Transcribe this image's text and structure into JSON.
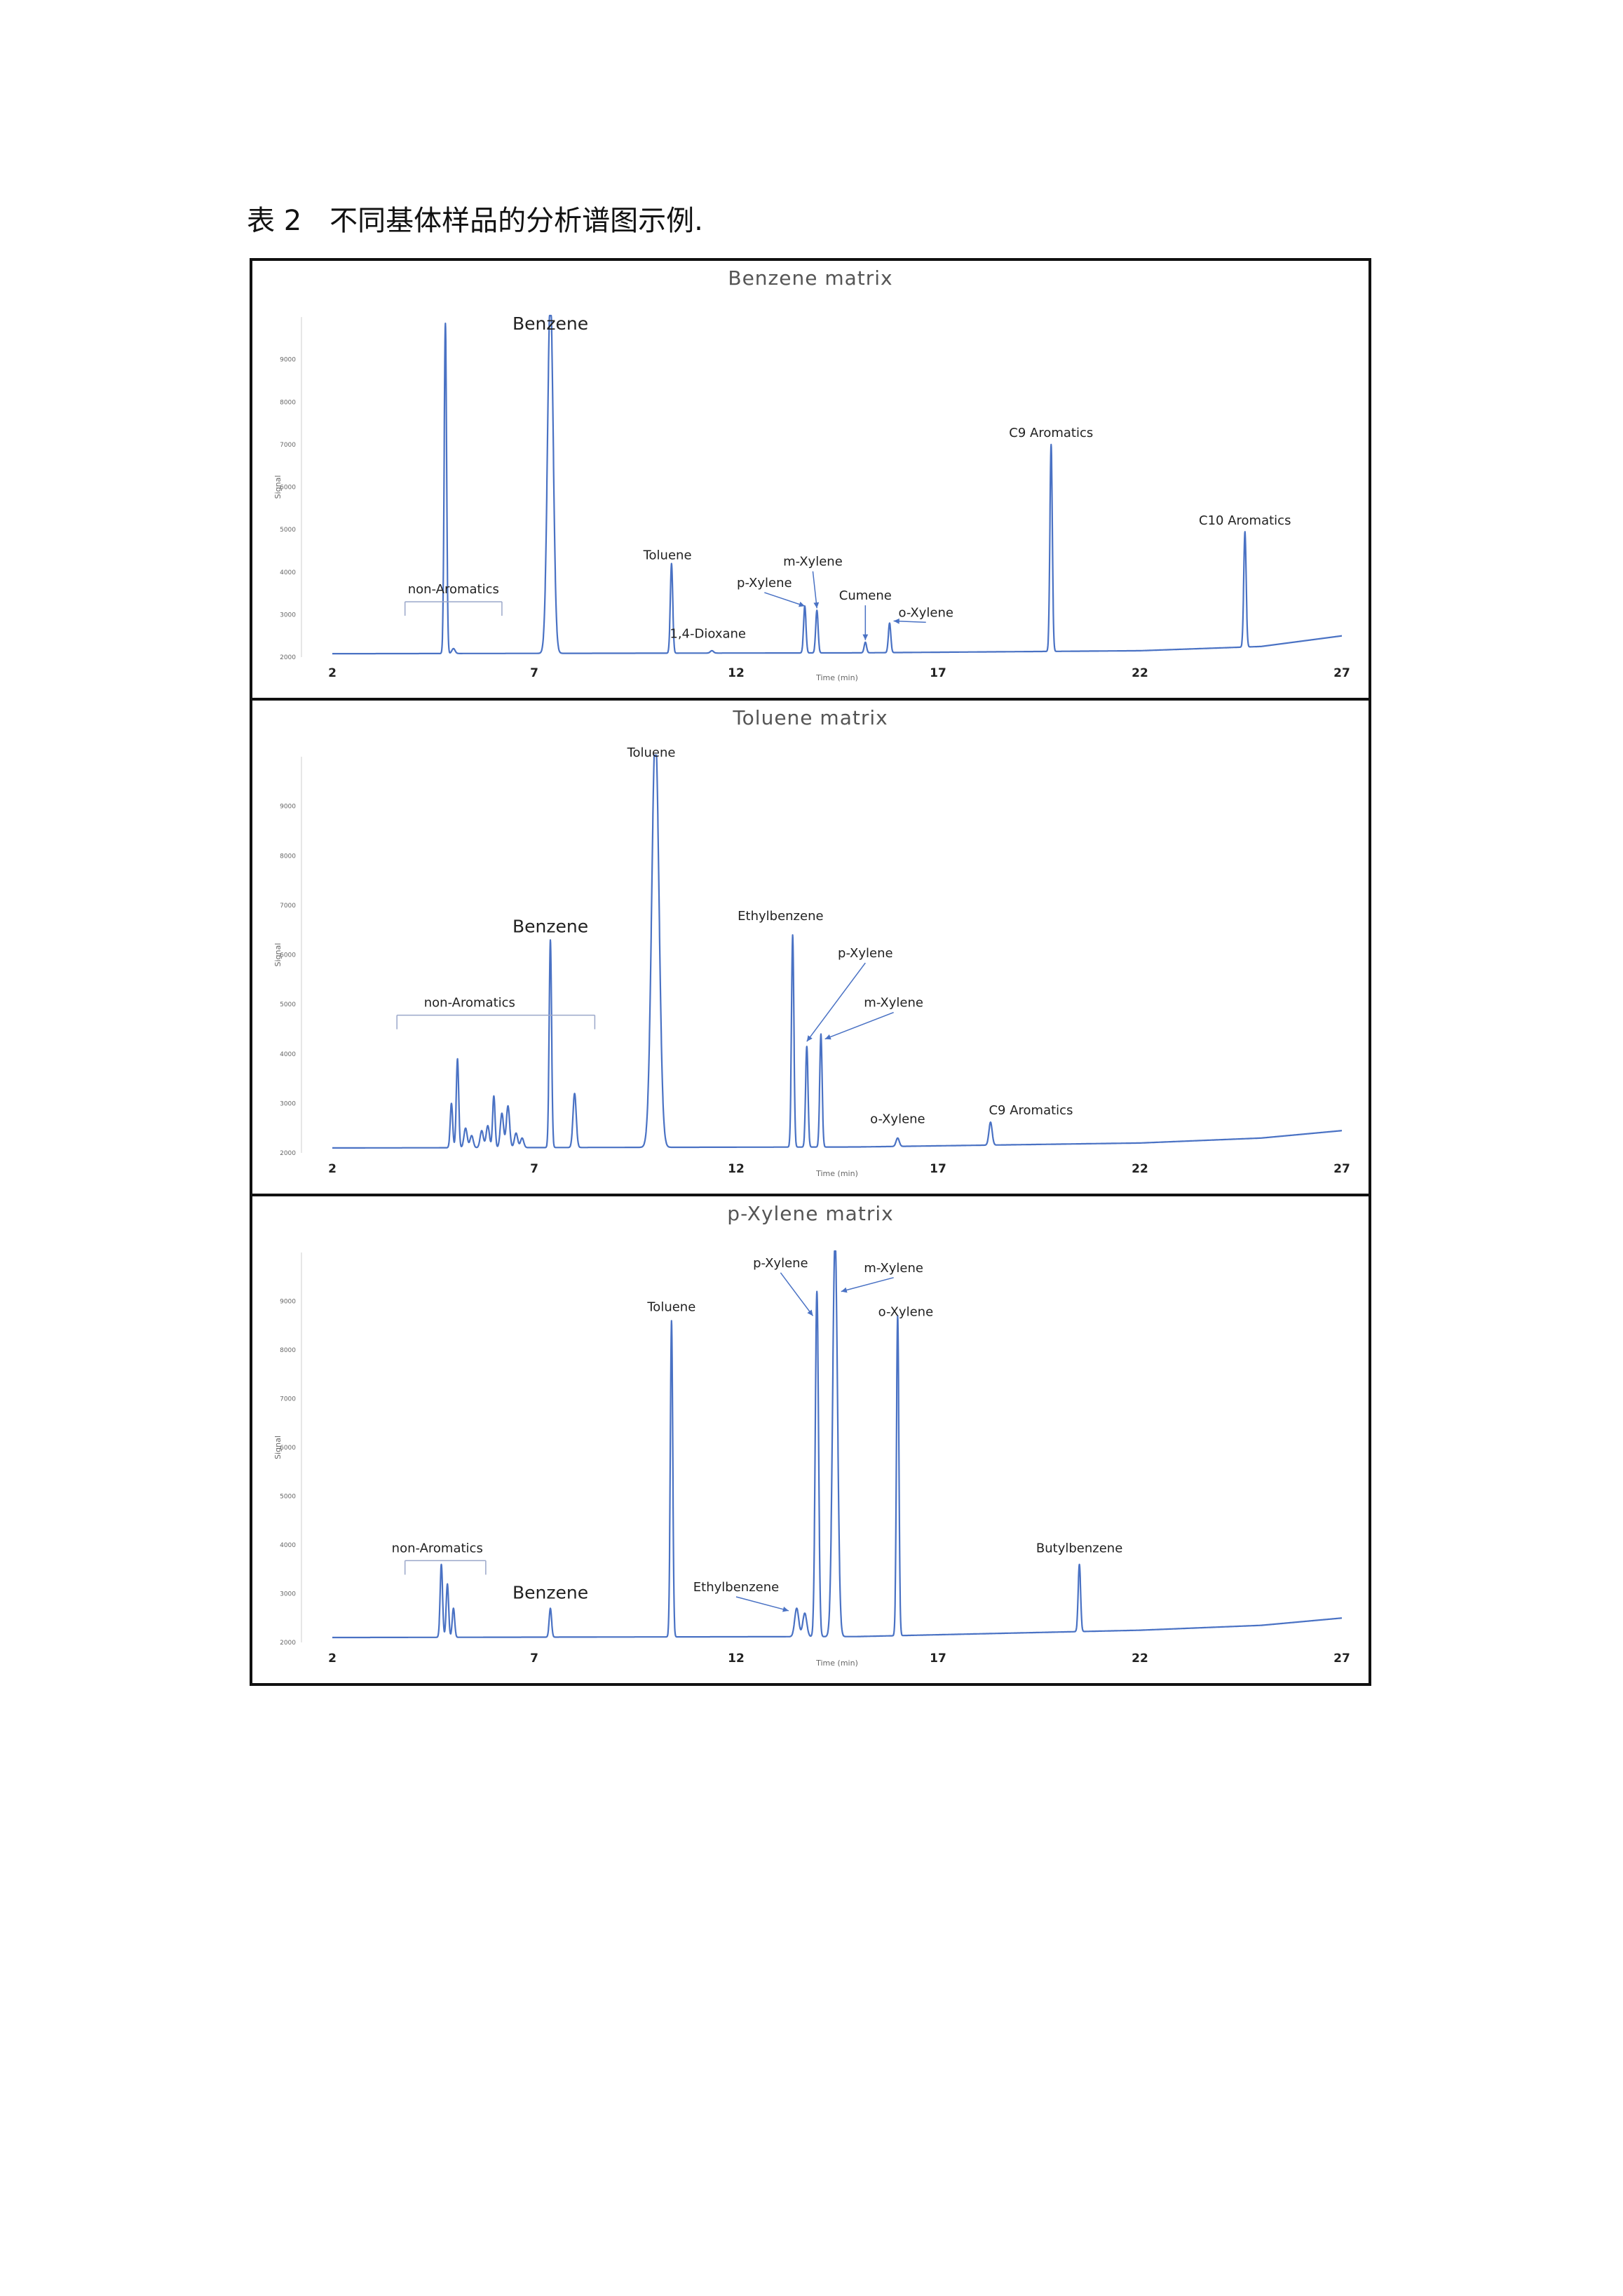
{
  "caption": "表 2　不同基体样品的分析谱图示例.",
  "colors": {
    "trace": "#4a72c4",
    "axis": "#cfcfcf",
    "annotation": "#9aa7c9"
  },
  "chart_data": [
    {
      "type": "line",
      "title": "Benzene matrix",
      "xlabel": "Time (min)",
      "ylabel": "Signal",
      "xlim": [
        2,
        27
      ],
      "ylim": [
        2000,
        10000
      ],
      "xticks": [
        "2",
        "7",
        "12",
        "17",
        "22",
        "27"
      ],
      "yticks": [
        "2000",
        "3000",
        "4000",
        "5000",
        "6000",
        "7000",
        "8000",
        "9000"
      ],
      "baseline": [
        [
          2,
          2080
        ],
        [
          15,
          2100
        ],
        [
          22,
          2150
        ],
        [
          25,
          2250
        ],
        [
          27,
          2500
        ]
      ],
      "peaks": [
        {
          "x": 4.8,
          "y": 9850,
          "w": 0.03
        },
        {
          "x": 5.0,
          "y": 2200,
          "w": 0.04
        },
        {
          "x": 7.4,
          "y": 10500,
          "w": 0.07
        },
        {
          "x": 10.4,
          "y": 4200,
          "w": 0.03
        },
        {
          "x": 11.4,
          "y": 2150,
          "w": 0.04
        },
        {
          "x": 13.7,
          "y": 3200,
          "w": 0.03
        },
        {
          "x": 14.0,
          "y": 3100,
          "w": 0.03
        },
        {
          "x": 15.2,
          "y": 2350,
          "w": 0.03
        },
        {
          "x": 15.8,
          "y": 2800,
          "w": 0.03
        },
        {
          "x": 19.8,
          "y": 7000,
          "w": 0.03
        },
        {
          "x": 24.6,
          "y": 4950,
          "w": 0.03
        }
      ],
      "annotations": [
        {
          "label": "Benzene",
          "x": 7.4,
          "y": 9700,
          "size": "big"
        },
        {
          "label": "non-Aromatics",
          "x": 5.0,
          "y": 3500,
          "bracket": [
            3.8,
            6.2
          ]
        },
        {
          "label": "Toluene",
          "x": 10.3,
          "y": 4300
        },
        {
          "label": "1,4-Dioxane",
          "x": 11.3,
          "y": 2450
        },
        {
          "label": "p-Xylene",
          "x": 12.7,
          "y": 3650,
          "arrow": [
            13.7,
            3200
          ]
        },
        {
          "label": "m-Xylene",
          "x": 13.9,
          "y": 4150,
          "arrow": [
            14.0,
            3150
          ]
        },
        {
          "label": "Cumene",
          "x": 15.2,
          "y": 3350,
          "arrow": [
            15.2,
            2400
          ]
        },
        {
          "label": "o-Xylene",
          "x": 16.7,
          "y": 2950,
          "arrow": [
            15.9,
            2850
          ]
        },
        {
          "label": "C9 Aromatics",
          "x": 19.8,
          "y": 7180
        },
        {
          "label": "C10 Aromatics",
          "x": 24.6,
          "y": 5120
        }
      ]
    },
    {
      "type": "line",
      "title": "Toluene matrix",
      "xlabel": "Time (min)",
      "ylabel": "Signal",
      "xlim": [
        2,
        27
      ],
      "ylim": [
        2000,
        10000
      ],
      "xticks": [
        "2",
        "7",
        "12",
        "17",
        "22",
        "27"
      ],
      "yticks": [
        "2000",
        "3000",
        "4000",
        "5000",
        "6000",
        "7000",
        "8000",
        "9000"
      ],
      "baseline": [
        [
          2,
          2100
        ],
        [
          15,
          2120
        ],
        [
          22,
          2200
        ],
        [
          25,
          2300
        ],
        [
          27,
          2450
        ]
      ],
      "peaks": [
        {
          "x": 4.95,
          "y": 3000,
          "w": 0.03
        },
        {
          "x": 5.1,
          "y": 3900,
          "w": 0.03
        },
        {
          "x": 5.3,
          "y": 2500,
          "w": 0.04
        },
        {
          "x": 5.45,
          "y": 2350,
          "w": 0.04
        },
        {
          "x": 5.7,
          "y": 2450,
          "w": 0.04
        },
        {
          "x": 5.85,
          "y": 2550,
          "w": 0.04
        },
        {
          "x": 6.0,
          "y": 3150,
          "w": 0.03
        },
        {
          "x": 6.2,
          "y": 2800,
          "w": 0.04
        },
        {
          "x": 6.35,
          "y": 2950,
          "w": 0.04
        },
        {
          "x": 6.55,
          "y": 2400,
          "w": 0.04
        },
        {
          "x": 6.7,
          "y": 2300,
          "w": 0.04
        },
        {
          "x": 7.4,
          "y": 6300,
          "w": 0.03
        },
        {
          "x": 8.0,
          "y": 3200,
          "w": 0.04
        },
        {
          "x": 10.0,
          "y": 10500,
          "w": 0.09
        },
        {
          "x": 13.4,
          "y": 6400,
          "w": 0.03
        },
        {
          "x": 13.75,
          "y": 4150,
          "w": 0.03
        },
        {
          "x": 14.1,
          "y": 4400,
          "w": 0.03
        },
        {
          "x": 16.0,
          "y": 2300,
          "w": 0.04
        },
        {
          "x": 18.3,
          "y": 2620,
          "w": 0.04
        }
      ],
      "annotations": [
        {
          "label": "Toluene",
          "x": 9.9,
          "y": 10000
        },
        {
          "label": "non-Aromatics",
          "x": 5.4,
          "y": 4950,
          "bracket": [
            3.6,
            8.5
          ]
        },
        {
          "label": "Benzene",
          "x": 7.4,
          "y": 6450,
          "size": "big"
        },
        {
          "label": "Ethylbenzene",
          "x": 13.1,
          "y": 6700
        },
        {
          "label": "p-Xylene",
          "x": 15.2,
          "y": 5950,
          "arrow": [
            13.75,
            4250
          ]
        },
        {
          "label": "m-Xylene",
          "x": 15.9,
          "y": 4950,
          "arrow": [
            14.2,
            4300
          ]
        },
        {
          "label": "o-Xylene",
          "x": 16.0,
          "y": 2600
        },
        {
          "label": "C9 Aromatics",
          "x": 19.3,
          "y": 2780
        }
      ]
    },
    {
      "type": "line",
      "title": "p-Xylene matrix",
      "xlabel": "Time (min)",
      "ylabel": "Signal",
      "xlim": [
        2,
        27
      ],
      "ylim": [
        2000,
        10000
      ],
      "xticks": [
        "2",
        "7",
        "12",
        "17",
        "22",
        "27"
      ],
      "yticks": [
        "2000",
        "3000",
        "4000",
        "5000",
        "6000",
        "7000",
        "8000",
        "9000"
      ],
      "baseline": [
        [
          2,
          2100
        ],
        [
          15,
          2120
        ],
        [
          22,
          2250
        ],
        [
          25,
          2350
        ],
        [
          27,
          2500
        ]
      ],
      "peaks": [
        {
          "x": 4.7,
          "y": 3600,
          "w": 0.03
        },
        {
          "x": 4.85,
          "y": 3200,
          "w": 0.03
        },
        {
          "x": 5.0,
          "y": 2700,
          "w": 0.03
        },
        {
          "x": 7.4,
          "y": 2700,
          "w": 0.03
        },
        {
          "x": 10.4,
          "y": 8600,
          "w": 0.03
        },
        {
          "x": 13.5,
          "y": 2700,
          "w": 0.05
        },
        {
          "x": 13.7,
          "y": 2600,
          "w": 0.05
        },
        {
          "x": 14.0,
          "y": 9200,
          "w": 0.04
        },
        {
          "x": 14.45,
          "y": 10300,
          "w": 0.06
        },
        {
          "x": 16.0,
          "y": 8700,
          "w": 0.03
        },
        {
          "x": 20.5,
          "y": 3600,
          "w": 0.03
        }
      ],
      "annotations": [
        {
          "label": "p-Xylene",
          "x": 13.1,
          "y": 9700,
          "arrow": [
            13.9,
            8700
          ]
        },
        {
          "label": "m-Xylene",
          "x": 15.9,
          "y": 9600,
          "arrow": [
            14.6,
            9200
          ]
        },
        {
          "label": "Toluene",
          "x": 10.4,
          "y": 8800
        },
        {
          "label": "o-Xylene",
          "x": 16.2,
          "y": 8700
        },
        {
          "label": "non-Aromatics",
          "x": 4.6,
          "y": 3850,
          "bracket": [
            3.8,
            5.8
          ]
        },
        {
          "label": "Benzene",
          "x": 7.4,
          "y": 2900,
          "size": "big"
        },
        {
          "label": "Ethylbenzene",
          "x": 12.0,
          "y": 3050,
          "arrow": [
            13.3,
            2650
          ]
        },
        {
          "label": "Butylbenzene",
          "x": 20.5,
          "y": 3850
        }
      ]
    }
  ]
}
